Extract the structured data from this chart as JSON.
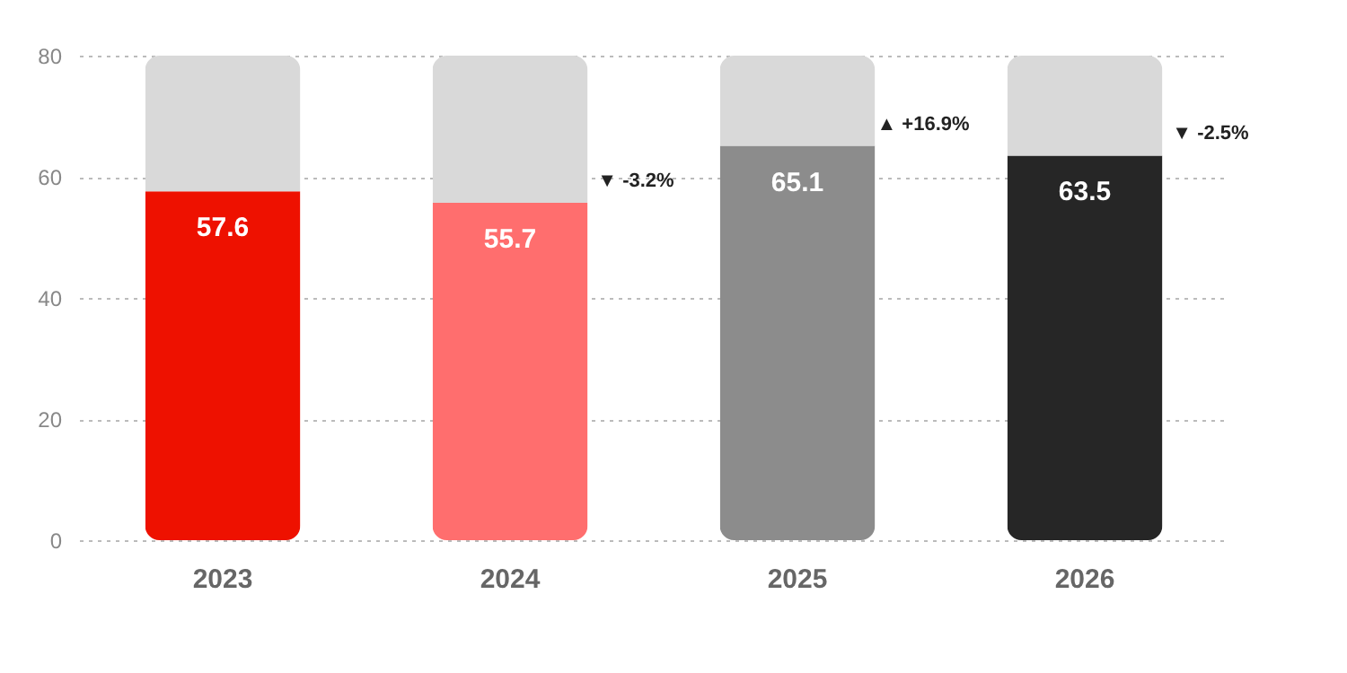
{
  "chart_data": {
    "type": "bar",
    "stacked": true,
    "categories": [
      "2023",
      "2024",
      "2025",
      "2026"
    ],
    "series": [
      {
        "colors": [
          "#ee1100",
          "#ff6e6e",
          "#8c8c8c",
          "#262626"
        ],
        "values": [
          57.6,
          55.7,
          65.1,
          63.5
        ],
        "value_labels": [
          "57.6",
          "55.7",
          "65.1",
          "63.5"
        ]
      },
      {
        "color": "#d9d9d9",
        "values": [
          22.4,
          24.3,
          14.9,
          16.5
        ]
      }
    ],
    "ylim": [
      0,
      80
    ],
    "yticks": [
      0,
      20,
      40,
      60,
      80
    ],
    "grid": "y",
    "annotations": [
      "▼ -3.2%",
      "▲ +16.9%",
      "▼ -2.5%"
    ]
  }
}
